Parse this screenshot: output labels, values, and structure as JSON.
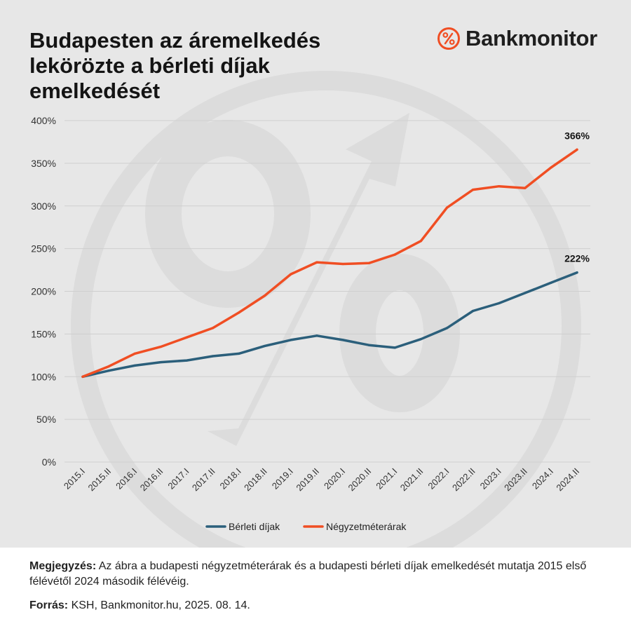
{
  "title": "Budapesten az áremelkedés\nlekörözte a bérleti díjak\nemelkedését",
  "brand": {
    "name": "Bankmonitor",
    "icon": "percent-circle-icon",
    "color": "#f04e23"
  },
  "watermark": {
    "icon": "percent-arrow-watermark-icon"
  },
  "chart_data": {
    "type": "line",
    "categories": [
      "2015.I",
      "2015.II",
      "2016.I",
      "2016.II",
      "2017.I",
      "2017.II",
      "2018.I",
      "2018.II",
      "2019.I",
      "2019.II",
      "2020.I",
      "2020.II",
      "2021.I",
      "2021.II",
      "2022.I",
      "2022.II",
      "2023.I",
      "2023.II",
      "2024.I",
      "2024.II"
    ],
    "series": [
      {
        "name": "Bérleti díjak",
        "color": "#2b5f7b",
        "values": [
          100,
          107,
          113,
          117,
          119,
          124,
          127,
          136,
          143,
          148,
          143,
          137,
          134,
          144,
          157,
          177,
          186,
          198,
          210,
          222
        ],
        "end_label": "222%"
      },
      {
        "name": "Négyzetméterárak",
        "color": "#f04e23",
        "values": [
          100,
          112,
          127,
          135,
          146,
          157,
          175,
          195,
          220,
          234,
          232,
          233,
          243,
          259,
          298,
          319,
          323,
          321,
          345,
          366
        ],
        "end_label": "366%"
      }
    ],
    "y_ticks": [
      "0%",
      "50%",
      "100%",
      "150%",
      "200%",
      "250%",
      "300%",
      "350%",
      "400%"
    ],
    "ylim": [
      0,
      400
    ],
    "y_unit": "%",
    "grid": true,
    "legend_position": "bottom-center"
  },
  "footer": {
    "note_label": "Megjegyzés:",
    "note_text": " Az ábra a budapesti négyzetméterárak és a budapesti bérleti díjak emelkedését mutatja 2015 első félévétől 2024 második félévéig.",
    "source_label": "Forrás:",
    "source_text": " KSH, Bankmonitor.hu, 2025. 08. 14."
  }
}
